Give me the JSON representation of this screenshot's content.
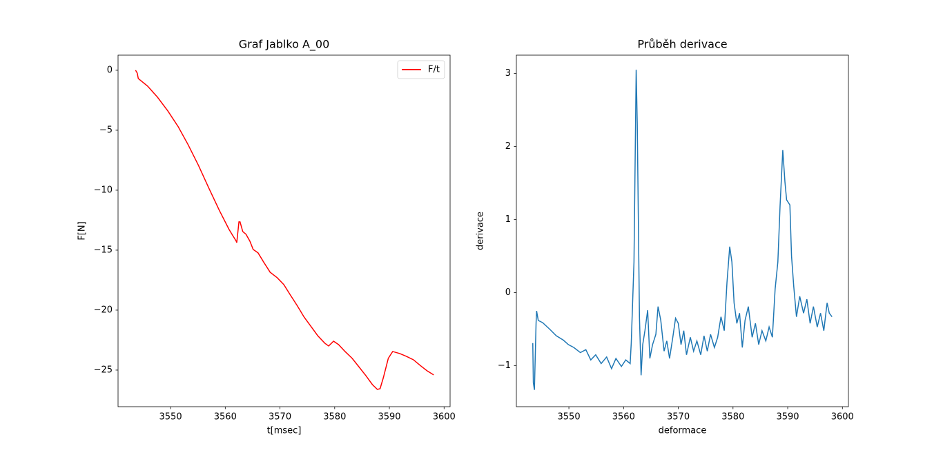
{
  "chart_data": [
    {
      "type": "line",
      "title": "Graf Jablko A_00",
      "x_label": "t[msec]",
      "y_label": "F[N]",
      "x": [
        3543.6,
        3543.9,
        3544.1,
        3545.8,
        3547.6,
        3549.5,
        3551.4,
        3553.2,
        3555.1,
        3557.0,
        3558.9,
        3560.7,
        3562.0,
        3562.1,
        3562.5,
        3562.7,
        3563.2,
        3563.8,
        3564.5,
        3565.1,
        3566.0,
        3567.0,
        3568.2,
        3569.5,
        3570.7,
        3571.9,
        3573.2,
        3574.4,
        3575.7,
        3576.9,
        3578.2,
        3578.9,
        3579.8,
        3580.7,
        3581.9,
        3583.2,
        3584.4,
        3585.7,
        3586.9,
        3587.8,
        3588.3,
        3588.9,
        3589.8,
        3590.6,
        3591.9,
        3593.1,
        3594.4,
        3595.6,
        3596.9,
        3598.1
      ],
      "series": [
        {
          "name": "F/t",
          "color": "#ff0000",
          "values": [
            0,
            -0.23,
            -0.69,
            -1.32,
            -2.24,
            -3.39,
            -4.71,
            -6.2,
            -7.93,
            -9.83,
            -11.67,
            -13.28,
            -14.25,
            -14.37,
            -12.64,
            -12.64,
            -13.45,
            -13.68,
            -14.25,
            -14.94,
            -15.23,
            -15.98,
            -16.84,
            -17.3,
            -17.87,
            -18.74,
            -19.66,
            -20.57,
            -21.38,
            -22.13,
            -22.76,
            -22.99,
            -22.59,
            -22.87,
            -23.45,
            -24.02,
            -24.71,
            -25.46,
            -26.21,
            -26.61,
            -26.55,
            -25.63,
            -24.02,
            -23.45,
            -23.62,
            -23.85,
            -24.14,
            -24.6,
            -25.06,
            -25.4
          ]
        }
      ],
      "xlim": [
        3540.4,
        3601.1
      ],
      "xticks": [
        3550,
        3560,
        3570,
        3580,
        3590,
        3600
      ],
      "ylim": [
        -28.05,
        1.26
      ],
      "yticks": [
        0,
        {
          "value": -5,
          "label": "−5"
        },
        {
          "value": -10,
          "label": "−10"
        },
        {
          "value": -15,
          "label": "−15"
        },
        {
          "value": -20,
          "label": "−20"
        },
        {
          "value": -25,
          "label": "−25"
        }
      ],
      "legend": "upper right",
      "grid": false
    },
    {
      "type": "line",
      "title": "Průběh derivace",
      "x_label": "deformace",
      "y_label": "derivace",
      "x": [
        3543.4,
        3543.5,
        3543.7,
        3544.0,
        3544.1,
        3544.4,
        3545.2,
        3546.5,
        3547.7,
        3549.0,
        3549.9,
        3550.9,
        3552.1,
        3553.1,
        3554.0,
        3554.9,
        3555.9,
        3556.9,
        3557.8,
        3558.6,
        3559.6,
        3560.4,
        3561.2,
        3561.4,
        3561.9,
        3562.3,
        3562.5,
        3562.9,
        3563.2,
        3563.5,
        3563.9,
        3564.4,
        3564.8,
        3565.3,
        3565.9,
        3566.3,
        3566.8,
        3567.4,
        3567.9,
        3568.4,
        3569.0,
        3569.5,
        3570.0,
        3570.5,
        3571.0,
        3571.5,
        3572.2,
        3572.8,
        3573.4,
        3574.1,
        3574.7,
        3575.3,
        3575.9,
        3576.6,
        3577.2,
        3577.8,
        3578.4,
        3578.9,
        3579.4,
        3579.8,
        3580.2,
        3580.7,
        3581.2,
        3581.7,
        3582.2,
        3582.8,
        3583.5,
        3584.1,
        3584.7,
        3585.3,
        3586.0,
        3586.6,
        3587.2,
        3587.7,
        3588.2,
        3588.6,
        3589.1,
        3589.5,
        3589.8,
        3590.4,
        3590.7,
        3591.1,
        3591.6,
        3592.2,
        3592.9,
        3593.5,
        3594.1,
        3594.7,
        3595.4,
        3596.0,
        3596.6,
        3597.2,
        3597.6,
        3598.1
      ],
      "series": [
        {
          "color": "#1f77b4",
          "values": [
            -0.69,
            -1.23,
            -1.33,
            -0.42,
            -0.25,
            -0.38,
            -0.41,
            -0.5,
            -0.59,
            -0.65,
            -0.71,
            -0.75,
            -0.82,
            -0.78,
            -0.92,
            -0.85,
            -0.97,
            -0.88,
            -1.04,
            -0.9,
            -1.01,
            -0.92,
            -0.97,
            -0.69,
            0.42,
            3.05,
            2.31,
            -0.33,
            -1.13,
            -0.71,
            -0.52,
            -0.24,
            -0.9,
            -0.71,
            -0.57,
            -0.19,
            -0.38,
            -0.8,
            -0.66,
            -0.9,
            -0.61,
            -0.35,
            -0.42,
            -0.71,
            -0.52,
            -0.85,
            -0.61,
            -0.8,
            -0.66,
            -0.85,
            -0.59,
            -0.8,
            -0.57,
            -0.75,
            -0.61,
            -0.33,
            -0.52,
            0.14,
            0.63,
            0.42,
            -0.14,
            -0.42,
            -0.28,
            -0.75,
            -0.38,
            -0.19,
            -0.61,
            -0.42,
            -0.71,
            -0.52,
            -0.66,
            -0.47,
            -0.61,
            0.05,
            0.42,
            1.18,
            1.95,
            1.51,
            1.27,
            1.2,
            0.5,
            0.09,
            -0.33,
            -0.05,
            -0.28,
            -0.09,
            -0.42,
            -0.19,
            -0.47,
            -0.28,
            -0.52,
            -0.14,
            -0.28,
            -0.33
          ]
        }
      ],
      "xlim": [
        3540.4,
        3601.1
      ],
      "xticks": [
        3550,
        3560,
        3570,
        3580,
        3590,
        3600
      ],
      "ylim": [
        -1.56,
        3.25
      ],
      "yticks": [
        {
          "value": -1,
          "label": "−1"
        },
        0,
        1,
        2,
        3
      ],
      "grid": false
    }
  ]
}
